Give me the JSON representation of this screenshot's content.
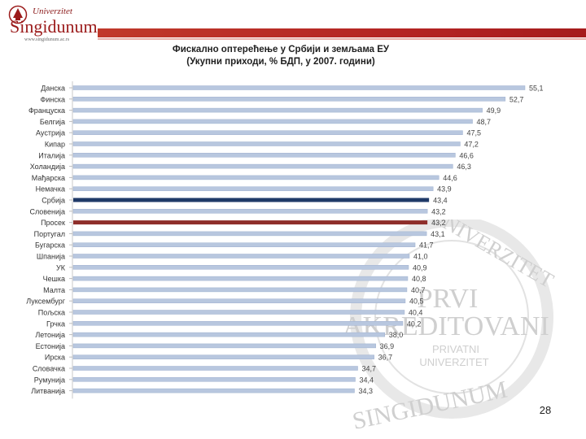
{
  "header": {
    "logo_top": "Univerzitet",
    "logo_name": "Singidunum",
    "logo_url": "www.singidunum.ac.rs"
  },
  "watermark": {
    "line1": "PRVI",
    "line2": "AKREDITOVANI",
    "line3": "PRIVATNI",
    "line4": "UNIVERZITET",
    "ring_top": "UNIVERZITET",
    "ring_bottom": "SINGIDUNUM"
  },
  "colors": {
    "bar_default": "#b8c7df",
    "bar_highlight_serbia": "#1f3a68",
    "bar_highlight_average": "#8e2e2a",
    "brand_red": "#b22222"
  },
  "slide": {
    "title_line1": "Фискално оптерећење у Србији и земљама ЕУ",
    "title_line2": "(Укупни приходи, % БДП, у 2007. години)",
    "page_number": "28"
  },
  "chart_data": {
    "type": "bar",
    "orientation": "horizontal",
    "title": "Фискално оптерећење у Србији и земљама ЕУ (Укупни приходи, % БДП, у 2007. години)",
    "categories": [
      "Данска",
      "Финска",
      "Француска",
      "Белгија",
      "Аустрија",
      "Кипар",
      "Италија",
      "Холандија",
      "Мађарска",
      "Немачка",
      "Србија",
      "Словенија",
      "Просек",
      "Португал",
      "Бугарска",
      "Шпанија",
      "УК",
      "Чешка",
      "Малта",
      "Луксембург",
      "Пољска",
      "Грчка",
      "Летонија",
      "Естонија",
      "Ирска",
      "Словачка",
      "Румунија",
      "Литванија"
    ],
    "values": [
      55.1,
      52.7,
      49.9,
      48.7,
      47.5,
      47.2,
      46.6,
      46.3,
      44.6,
      43.9,
      43.4,
      43.2,
      43.2,
      43.1,
      41.7,
      41.0,
      40.9,
      40.8,
      40.7,
      40.5,
      40.4,
      40.2,
      38.0,
      36.9,
      36.7,
      34.7,
      34.4,
      34.3
    ],
    "value_labels": [
      "55,1",
      "52,7",
      "49,9",
      "48,7",
      "47,5",
      "47,2",
      "46,6",
      "46,3",
      "44,6",
      "43,9",
      "43,4",
      "43,2",
      "43,2",
      "43,1",
      "41,7",
      "41,0",
      "40,9",
      "40,8",
      "40,7",
      "40,5",
      "40,4",
      "40,2",
      "38,0",
      "36,9",
      "36,7",
      "34,7",
      "34,4",
      "34,3"
    ],
    "highlight": {
      "Србија": "serbia",
      "Просек": "average"
    },
    "xlim": [
      0,
      56
    ],
    "xlabel": "",
    "ylabel": "",
    "grid": false,
    "legend": "none",
    "data_labels": "end"
  }
}
